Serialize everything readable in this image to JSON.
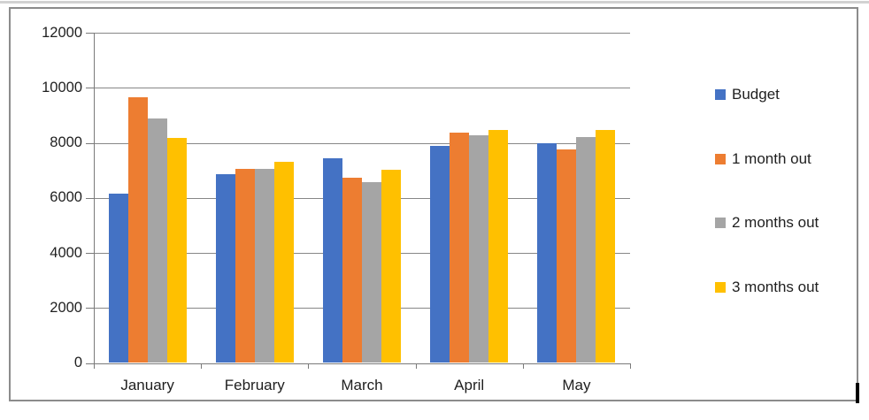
{
  "chart_data": {
    "type": "bar",
    "title": "",
    "categories": [
      "January",
      "February",
      "March",
      "April",
      "May"
    ],
    "series": [
      {
        "name": "Budget",
        "color": "#4472C4",
        "values": [
          6150,
          6870,
          7450,
          7880,
          7980
        ]
      },
      {
        "name": "1 month out",
        "color": "#ED7D31",
        "values": [
          9650,
          7060,
          6730,
          8370,
          7760
        ]
      },
      {
        "name": "2 months out",
        "color": "#A5A5A5",
        "values": [
          8890,
          7060,
          6560,
          8260,
          8210
        ]
      },
      {
        "name": "3 months out",
        "color": "#FFC000",
        "values": [
          8180,
          7310,
          7010,
          8450,
          8470
        ]
      }
    ],
    "xlabel": "",
    "ylabel": "",
    "ylim": [
      0,
      12000
    ],
    "ytick_step": 2000,
    "ytick_labels": [
      "0",
      "2000",
      "4000",
      "6000",
      "8000",
      "10000",
      "12000"
    ],
    "grid": true,
    "grid_color": "#878787",
    "legend_position": "right"
  }
}
